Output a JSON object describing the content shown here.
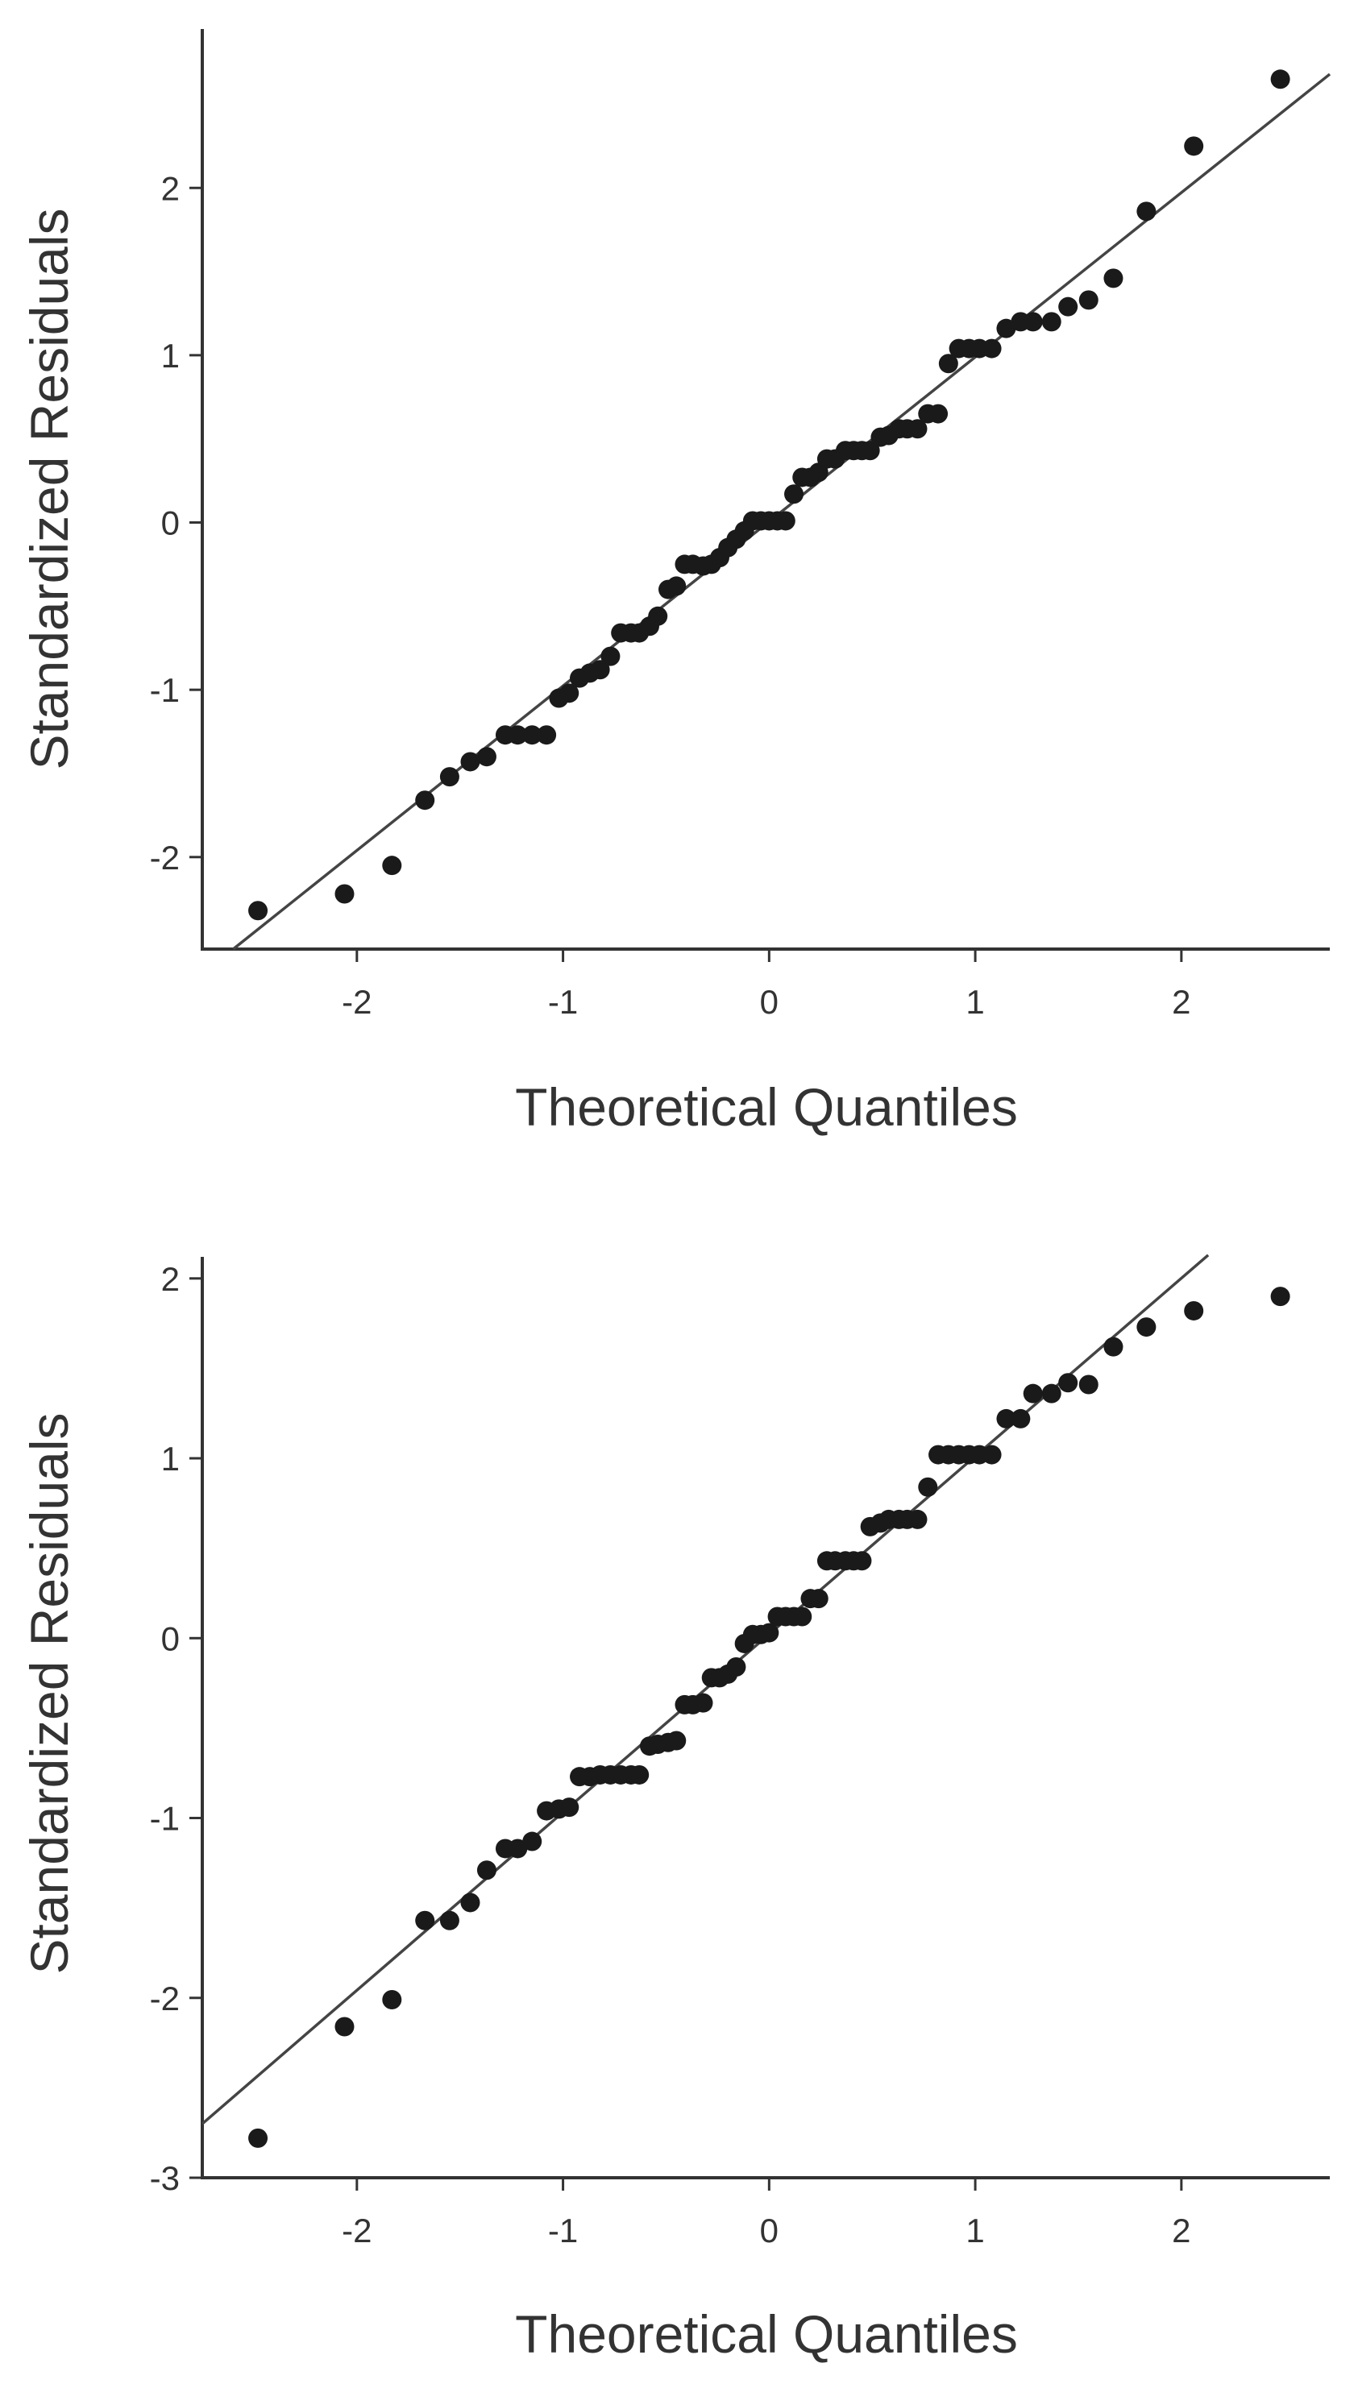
{
  "chart_data": [
    {
      "type": "scatter",
      "title": "",
      "xlabel": "Theoretical Quantiles",
      "ylabel": "Standardized Residuals",
      "xlim": [
        -2.75,
        2.72
      ],
      "ylim": [
        -2.55,
        2.95
      ],
      "xticks": [
        -2,
        -1,
        0,
        1,
        2
      ],
      "yticks": [
        -2,
        -1,
        0,
        1,
        2
      ],
      "grid": false,
      "reference_line": {
        "x1": -2.6,
        "y1": -2.55,
        "x2": 2.72,
        "y2": 2.68
      },
      "series": [
        {
          "points": [
            [
              -2.48,
              -2.32
            ],
            [
              -2.06,
              -2.22
            ],
            [
              -1.83,
              -2.05
            ],
            [
              -1.67,
              -1.66
            ],
            [
              -1.55,
              -1.52
            ],
            [
              -1.45,
              -1.43
            ],
            [
              -1.37,
              -1.4
            ],
            [
              -1.28,
              -1.27
            ],
            [
              -1.22,
              -1.27
            ],
            [
              -1.15,
              -1.27
            ],
            [
              -1.08,
              -1.27
            ],
            [
              -1.02,
              -1.05
            ],
            [
              -0.97,
              -1.02
            ],
            [
              -0.92,
              -0.93
            ],
            [
              -0.87,
              -0.9
            ],
            [
              -0.82,
              -0.88
            ],
            [
              -0.77,
              -0.8
            ],
            [
              -0.72,
              -0.66
            ],
            [
              -0.67,
              -0.66
            ],
            [
              -0.63,
              -0.66
            ],
            [
              -0.58,
              -0.62
            ],
            [
              -0.54,
              -0.56
            ],
            [
              -0.49,
              -0.4
            ],
            [
              -0.45,
              -0.38
            ],
            [
              -0.41,
              -0.25
            ],
            [
              -0.37,
              -0.25
            ],
            [
              -0.32,
              -0.26
            ],
            [
              -0.28,
              -0.25
            ],
            [
              -0.24,
              -0.21
            ],
            [
              -0.2,
              -0.15
            ],
            [
              -0.16,
              -0.1
            ],
            [
              -0.12,
              -0.05
            ],
            [
              -0.08,
              0.01
            ],
            [
              -0.04,
              0.01
            ],
            [
              0.0,
              0.01
            ],
            [
              0.04,
              0.01
            ],
            [
              0.08,
              0.01
            ],
            [
              0.12,
              0.17
            ],
            [
              0.16,
              0.27
            ],
            [
              0.2,
              0.27
            ],
            [
              0.24,
              0.3
            ],
            [
              0.28,
              0.38
            ],
            [
              0.32,
              0.38
            ],
            [
              0.37,
              0.43
            ],
            [
              0.41,
              0.43
            ],
            [
              0.45,
              0.43
            ],
            [
              0.49,
              0.43
            ],
            [
              0.54,
              0.51
            ],
            [
              0.58,
              0.52
            ],
            [
              0.63,
              0.56
            ],
            [
              0.67,
              0.56
            ],
            [
              0.72,
              0.56
            ],
            [
              0.77,
              0.65
            ],
            [
              0.82,
              0.65
            ],
            [
              0.87,
              0.95
            ],
            [
              0.92,
              1.04
            ],
            [
              0.97,
              1.04
            ],
            [
              1.02,
              1.04
            ],
            [
              1.08,
              1.04
            ],
            [
              1.15,
              1.16
            ],
            [
              1.22,
              1.2
            ],
            [
              1.28,
              1.2
            ],
            [
              1.37,
              1.2
            ],
            [
              1.45,
              1.29
            ],
            [
              1.55,
              1.33
            ],
            [
              1.67,
              1.46
            ],
            [
              1.83,
              1.86
            ],
            [
              2.06,
              2.25
            ],
            [
              2.48,
              2.65
            ]
          ]
        }
      ]
    },
    {
      "type": "scatter",
      "title": "",
      "xlabel": "Theoretical Quantiles",
      "ylabel": "Standardized Residuals",
      "xlim": [
        -2.75,
        2.72
      ],
      "ylim": [
        -3.0,
        2.12
      ],
      "xticks": [
        -2,
        -1,
        0,
        1,
        2
      ],
      "yticks": [
        -3,
        -2,
        -1,
        0,
        1,
        2
      ],
      "grid": false,
      "reference_line": {
        "x1": -2.75,
        "y1": -2.7,
        "x2": 2.13,
        "y2": 2.13
      },
      "series": [
        {
          "points": [
            [
              -2.48,
              -2.78
            ],
            [
              -2.06,
              -2.16
            ],
            [
              -1.83,
              -2.01
            ],
            [
              -1.67,
              -1.57
            ],
            [
              -1.55,
              -1.57
            ],
            [
              -1.45,
              -1.47
            ],
            [
              -1.37,
              -1.29
            ],
            [
              -1.28,
              -1.17
            ],
            [
              -1.22,
              -1.17
            ],
            [
              -1.15,
              -1.13
            ],
            [
              -1.08,
              -0.96
            ],
            [
              -1.02,
              -0.95
            ],
            [
              -0.97,
              -0.94
            ],
            [
              -0.92,
              -0.77
            ],
            [
              -0.87,
              -0.77
            ],
            [
              -0.82,
              -0.76
            ],
            [
              -0.77,
              -0.76
            ],
            [
              -0.72,
              -0.76
            ],
            [
              -0.67,
              -0.76
            ],
            [
              -0.63,
              -0.76
            ],
            [
              -0.58,
              -0.6
            ],
            [
              -0.54,
              -0.59
            ],
            [
              -0.49,
              -0.58
            ],
            [
              -0.45,
              -0.57
            ],
            [
              -0.41,
              -0.37
            ],
            [
              -0.37,
              -0.37
            ],
            [
              -0.32,
              -0.36
            ],
            [
              -0.28,
              -0.22
            ],
            [
              -0.24,
              -0.22
            ],
            [
              -0.2,
              -0.2
            ],
            [
              -0.16,
              -0.16
            ],
            [
              -0.12,
              -0.03
            ],
            [
              -0.08,
              0.02
            ],
            [
              -0.04,
              0.02
            ],
            [
              0.0,
              0.03
            ],
            [
              0.04,
              0.12
            ],
            [
              0.08,
              0.12
            ],
            [
              0.12,
              0.12
            ],
            [
              0.16,
              0.12
            ],
            [
              0.2,
              0.22
            ],
            [
              0.24,
              0.22
            ],
            [
              0.28,
              0.43
            ],
            [
              0.32,
              0.43
            ],
            [
              0.37,
              0.43
            ],
            [
              0.41,
              0.43
            ],
            [
              0.45,
              0.43
            ],
            [
              0.49,
              0.62
            ],
            [
              0.54,
              0.64
            ],
            [
              0.58,
              0.66
            ],
            [
              0.63,
              0.66
            ],
            [
              0.67,
              0.66
            ],
            [
              0.72,
              0.66
            ],
            [
              0.77,
              0.84
            ],
            [
              0.82,
              1.02
            ],
            [
              0.87,
              1.02
            ],
            [
              0.92,
              1.02
            ],
            [
              0.97,
              1.02
            ],
            [
              1.02,
              1.02
            ],
            [
              1.08,
              1.02
            ],
            [
              1.15,
              1.22
            ],
            [
              1.22,
              1.22
            ],
            [
              1.28,
              1.36
            ],
            [
              1.37,
              1.36
            ],
            [
              1.45,
              1.42
            ],
            [
              1.55,
              1.41
            ],
            [
              1.67,
              1.62
            ],
            [
              1.83,
              1.73
            ],
            [
              2.06,
              1.82
            ],
            [
              2.48,
              1.9
            ]
          ]
        }
      ]
    }
  ]
}
